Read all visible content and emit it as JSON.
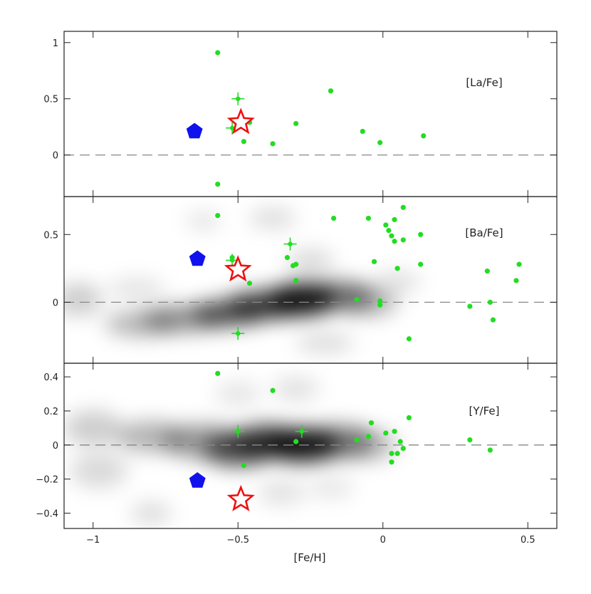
{
  "chart_data": [
    {
      "type": "scatter",
      "label": "[La/Fe]",
      "xlim": [
        -1.1,
        0.6
      ],
      "ylim": [
        -0.37,
        1.1
      ],
      "yticks": [
        -0.0,
        0.5,
        1.0
      ],
      "ytick_labels": [
        "0",
        "0.5",
        "1"
      ],
      "zero_line": true,
      "density_blobs": [],
      "series": [
        {
          "kind": "dot",
          "color": "#22dd22",
          "points": [
            [
              -0.57,
              0.91
            ],
            [
              -0.18,
              0.57
            ],
            [
              -0.3,
              0.28
            ],
            [
              -0.07,
              0.21
            ],
            [
              -0.01,
              0.11
            ],
            [
              0.14,
              0.17
            ],
            [
              -0.38,
              0.1
            ],
            [
              -0.48,
              0.12
            ],
            [
              -0.57,
              -0.26
            ],
            [
              -0.46,
              0.29
            ]
          ]
        },
        {
          "kind": "cross",
          "color": "#22dd22",
          "points": [
            [
              -0.5,
              0.5
            ],
            [
              -0.52,
              0.24
            ]
          ]
        },
        {
          "kind": "star",
          "color": "#ee1111",
          "points": [
            [
              -0.49,
              0.29
            ]
          ]
        },
        {
          "kind": "pentagon",
          "color": "#1111ee",
          "points": [
            [
              -0.65,
              0.21
            ]
          ]
        }
      ]
    },
    {
      "type": "scatter",
      "label": "[Ba/Fe]",
      "xlim": [
        -1.1,
        0.6
      ],
      "ylim": [
        -0.45,
        0.78
      ],
      "yticks": [
        0.0,
        0.5
      ],
      "ytick_labels": [
        "0",
        "0.5"
      ],
      "zero_line": true,
      "density_blobs": [
        {
          "x": -0.28,
          "y": 0.02,
          "rx": 0.12,
          "ry": 0.12,
          "o": 0.9
        },
        {
          "x": -0.4,
          "y": -0.02,
          "rx": 0.14,
          "ry": 0.11,
          "o": 0.7
        },
        {
          "x": -0.53,
          "y": -0.08,
          "rx": 0.13,
          "ry": 0.1,
          "o": 0.6
        },
        {
          "x": -0.68,
          "y": -0.12,
          "rx": 0.15,
          "ry": 0.1,
          "o": 0.4
        },
        {
          "x": -0.83,
          "y": -0.16,
          "rx": 0.13,
          "ry": 0.09,
          "o": 0.3
        },
        {
          "x": -0.15,
          "y": 0.05,
          "rx": 0.12,
          "ry": 0.11,
          "o": 0.5
        },
        {
          "x": -0.05,
          "y": 0.0,
          "rx": 0.1,
          "ry": 0.1,
          "o": 0.3
        },
        {
          "x": -1.05,
          "y": 0.02,
          "rx": 0.08,
          "ry": 0.12,
          "o": 0.2
        },
        {
          "x": -0.38,
          "y": 0.62,
          "rx": 0.08,
          "ry": 0.07,
          "o": 0.15
        },
        {
          "x": -0.62,
          "y": 0.6,
          "rx": 0.06,
          "ry": 0.06,
          "o": 0.12
        },
        {
          "x": -0.25,
          "y": 0.3,
          "rx": 0.08,
          "ry": 0.09,
          "o": 0.15
        },
        {
          "x": -0.2,
          "y": -0.3,
          "rx": 0.1,
          "ry": 0.07,
          "o": 0.15
        },
        {
          "x": -0.85,
          "y": 0.1,
          "rx": 0.1,
          "ry": 0.07,
          "o": 0.12
        },
        {
          "x": 0.05,
          "y": 0.15,
          "rx": 0.08,
          "ry": 0.08,
          "o": 0.12
        }
      ],
      "series": [
        {
          "kind": "dot",
          "color": "#22dd22",
          "points": [
            [
              -0.57,
              0.64
            ],
            [
              -0.17,
              0.62
            ],
            [
              -0.05,
              0.62
            ],
            [
              0.07,
              0.7
            ],
            [
              0.01,
              0.57
            ],
            [
              0.02,
              0.53
            ],
            [
              0.03,
              0.49
            ],
            [
              0.04,
              0.45
            ],
            [
              0.04,
              0.61
            ],
            [
              0.07,
              0.46
            ],
            [
              0.13,
              0.5
            ],
            [
              0.13,
              0.28
            ],
            [
              0.05,
              0.25
            ],
            [
              -0.03,
              0.3
            ],
            [
              -0.33,
              0.33
            ],
            [
              -0.3,
              0.28
            ],
            [
              -0.31,
              0.27
            ],
            [
              -0.3,
              0.16
            ],
            [
              -0.46,
              0.14
            ],
            [
              -0.52,
              0.33
            ],
            [
              -0.09,
              0.02
            ],
            [
              -0.01,
              0.01
            ],
            [
              -0.01,
              -0.02
            ],
            [
              0.09,
              -0.27
            ],
            [
              0.3,
              -0.03
            ],
            [
              0.36,
              0.23
            ],
            [
              0.37,
              0.0
            ],
            [
              0.38,
              -0.13
            ],
            [
              0.46,
              0.16
            ],
            [
              0.47,
              0.28
            ]
          ]
        },
        {
          "kind": "cross",
          "color": "#22dd22",
          "points": [
            [
              -0.32,
              0.43
            ],
            [
              -0.52,
              0.31
            ],
            [
              -0.5,
              -0.23
            ]
          ]
        },
        {
          "kind": "star",
          "color": "#ee1111",
          "points": [
            [
              -0.5,
              0.24
            ]
          ]
        },
        {
          "kind": "pentagon",
          "color": "#1111ee",
          "points": [
            [
              -0.64,
              0.32
            ]
          ]
        }
      ]
    },
    {
      "type": "scatter",
      "label": "[Y/Fe]",
      "xlim": [
        -1.1,
        0.6
      ],
      "ylim": [
        -0.49,
        0.48
      ],
      "yticks": [
        -0.4,
        -0.2,
        0.0,
        0.2,
        0.4
      ],
      "ytick_labels": [
        "−0.4",
        "−0.2",
        "0",
        "0.2",
        "0.4"
      ],
      "zero_line": true,
      "density_blobs": [
        {
          "x": -0.28,
          "y": 0.0,
          "rx": 0.13,
          "ry": 0.1,
          "o": 0.9
        },
        {
          "x": -0.4,
          "y": 0.02,
          "rx": 0.12,
          "ry": 0.1,
          "o": 0.7
        },
        {
          "x": -0.5,
          "y": -0.03,
          "rx": 0.12,
          "ry": 0.1,
          "o": 0.6
        },
        {
          "x": -0.62,
          "y": 0.02,
          "rx": 0.14,
          "ry": 0.1,
          "o": 0.4
        },
        {
          "x": -0.8,
          "y": 0.05,
          "rx": 0.12,
          "ry": 0.09,
          "o": 0.3
        },
        {
          "x": -0.15,
          "y": 0.02,
          "rx": 0.12,
          "ry": 0.1,
          "o": 0.45
        },
        {
          "x": -0.05,
          "y": 0.0,
          "rx": 0.1,
          "ry": 0.09,
          "o": 0.25
        },
        {
          "x": -1.0,
          "y": 0.1,
          "rx": 0.1,
          "ry": 0.1,
          "o": 0.2
        },
        {
          "x": -0.98,
          "y": -0.15,
          "rx": 0.1,
          "ry": 0.1,
          "o": 0.15
        },
        {
          "x": -0.8,
          "y": -0.4,
          "rx": 0.07,
          "ry": 0.06,
          "o": 0.15
        },
        {
          "x": -0.3,
          "y": 0.33,
          "rx": 0.08,
          "ry": 0.07,
          "o": 0.12
        },
        {
          "x": -0.5,
          "y": 0.3,
          "rx": 0.08,
          "ry": 0.07,
          "o": 0.1
        },
        {
          "x": -0.35,
          "y": -0.28,
          "rx": 0.08,
          "ry": 0.07,
          "o": 0.12
        },
        {
          "x": -0.18,
          "y": -0.25,
          "rx": 0.08,
          "ry": 0.06,
          "o": 0.1
        }
      ],
      "series": [
        {
          "kind": "dot",
          "color": "#22dd22",
          "points": [
            [
              -0.57,
              0.42
            ],
            [
              -0.38,
              0.32
            ],
            [
              0.09,
              0.16
            ],
            [
              -0.04,
              0.13
            ],
            [
              0.01,
              0.07
            ],
            [
              0.04,
              0.08
            ],
            [
              -0.05,
              0.05
            ],
            [
              -0.09,
              0.03
            ],
            [
              -0.3,
              0.02
            ],
            [
              0.06,
              0.02
            ],
            [
              0.07,
              -0.02
            ],
            [
              0.03,
              -0.05
            ],
            [
              0.05,
              -0.05
            ],
            [
              0.03,
              -0.1
            ],
            [
              -0.48,
              -0.12
            ],
            [
              0.3,
              0.03
            ],
            [
              0.37,
              -0.03
            ]
          ]
        },
        {
          "kind": "cross",
          "color": "#22dd22",
          "points": [
            [
              -0.5,
              0.08
            ],
            [
              -0.28,
              0.08
            ]
          ]
        },
        {
          "kind": "star",
          "color": "#ee1111",
          "points": [
            [
              -0.49,
              -0.32
            ]
          ]
        },
        {
          "kind": "pentagon",
          "color": "#1111ee",
          "points": [
            [
              -0.64,
              -0.21
            ]
          ]
        }
      ]
    }
  ],
  "xaxis": {
    "label": "[Fe/H]",
    "ticks": [
      -1.0,
      -0.5,
      0.0,
      0.5
    ],
    "tick_labels": [
      "−1",
      "−0.5",
      "0",
      "0.5"
    ]
  }
}
